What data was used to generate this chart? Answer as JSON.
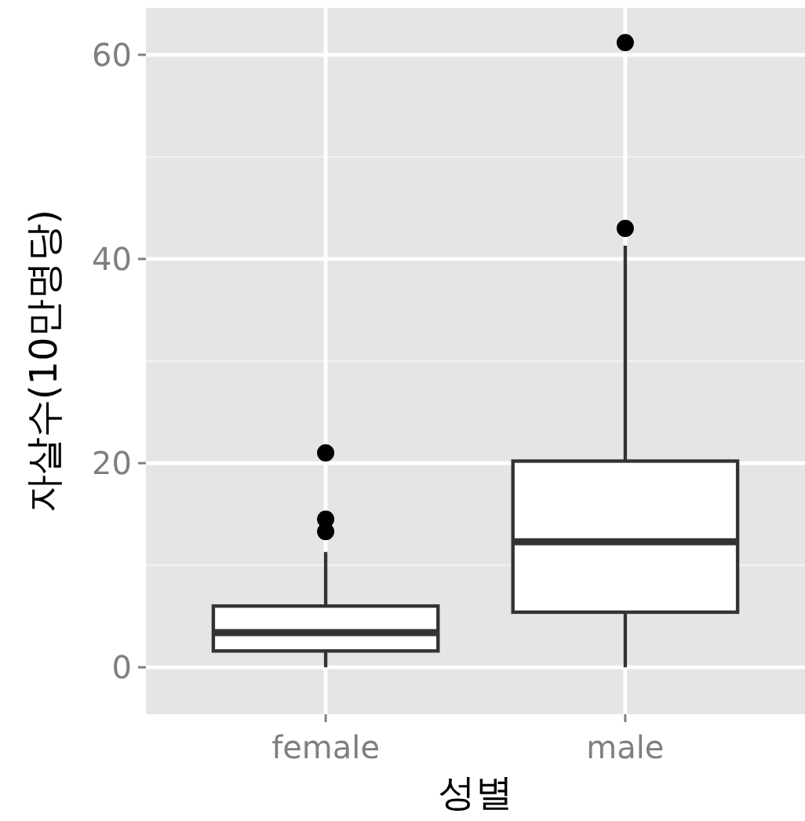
{
  "chart_data": {
    "type": "box",
    "xlabel": "성별",
    "ylabel": "자살수(10만명당)",
    "categories": [
      "female",
      "male"
    ],
    "boxes": [
      {
        "low": 0,
        "q1": 1.6,
        "median": 3.4,
        "q3": 6.0,
        "high": 11.3,
        "outliers": [
          13.3,
          14.5,
          21.0
        ]
      },
      {
        "low": 0,
        "q1": 5.4,
        "median": 12.3,
        "q3": 20.2,
        "high": 41.3,
        "outliers": [
          43.0,
          61.2
        ]
      }
    ],
    "ylim": [
      -4.6,
      64.6
    ],
    "yticks": [
      0,
      20,
      40,
      60
    ],
    "grid": true
  }
}
